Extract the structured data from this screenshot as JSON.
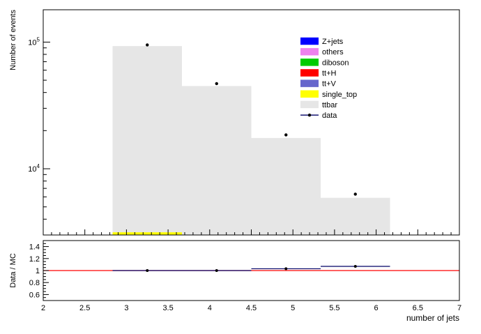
{
  "page": {
    "background": "#ffffff"
  },
  "colors": {
    "frame": "#000000",
    "ttbar_fill": "#e6e6e6",
    "singletop_fill": "#ffff00",
    "data_marker": "#000000",
    "data_line": "#000066",
    "refline": "#ff0000"
  },
  "legend": {
    "position": "top-right",
    "entries": [
      {
        "label": "Z+jets",
        "color": "#0000ff",
        "type": "box"
      },
      {
        "label": "others",
        "color": "#ee82ee",
        "type": "box"
      },
      {
        "label": "diboson",
        "color": "#00cc00",
        "type": "box"
      },
      {
        "label": "tt+H",
        "color": "#ff0000",
        "type": "box"
      },
      {
        "label": "tt+V",
        "color": "#6666cc",
        "type": "box"
      },
      {
        "label": "single_top",
        "color": "#ffff00",
        "type": "box"
      },
      {
        "label": "ttbar",
        "color": "#e6e6e6",
        "type": "box"
      },
      {
        "label": "data",
        "color": "#000066",
        "type": "marker"
      }
    ]
  },
  "chart_data": [
    {
      "type": "bar",
      "title": "",
      "ylabel": "Number of events",
      "xlabel": "",
      "yscale": "log",
      "grid": false,
      "xlim": [
        2,
        7
      ],
      "ylim": [
        3000,
        180000
      ],
      "bin_edges": [
        2.8333,
        3.6667,
        4.5,
        5.3333,
        6.1667
      ],
      "series": [
        {
          "name": "ttbar",
          "values": [
            93000,
            45000,
            17500,
            5900
          ]
        },
        {
          "name": "single_top",
          "values": [
            3150,
            0,
            0,
            0
          ]
        }
      ],
      "data_series": {
        "name": "data",
        "x": [
          3.25,
          4.0833,
          4.9167,
          5.75
        ],
        "y": [
          95000,
          47000,
          18500,
          6300
        ]
      },
      "yticks_major": [
        10000,
        100000
      ]
    },
    {
      "type": "scatter",
      "title": "",
      "ylabel": "Data / MC",
      "xlabel": "number of jets",
      "grid": false,
      "xlim": [
        2,
        7
      ],
      "ylim": [
        0.5,
        1.5
      ],
      "x": [
        3.25,
        4.0833,
        4.9167,
        5.75
      ],
      "y": [
        1.0,
        1.0,
        1.03,
        1.07
      ],
      "xerr": 0.4167,
      "yerr": [
        0.005,
        0.006,
        0.009,
        0.015
      ],
      "refline_y": 1.0,
      "refline_color": "#ff0000",
      "yticks": [
        0.6,
        0.8,
        1.0,
        1.2,
        1.4
      ],
      "xticks": [
        2,
        2.5,
        3,
        3.5,
        4,
        4.5,
        5,
        5.5,
        6,
        6.5,
        7
      ]
    }
  ]
}
